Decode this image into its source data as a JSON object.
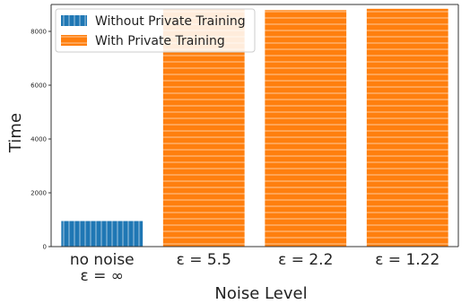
{
  "chart_data": {
    "type": "bar",
    "title": "",
    "xlabel": "Noise Level",
    "ylabel": "Time",
    "ylim": [
      0,
      9000
    ],
    "yticks": [
      0,
      2000,
      4000,
      6000,
      8000
    ],
    "grid": false,
    "legend_position": "top-left",
    "categories": [
      [
        "no noise",
        "ε = ∞"
      ],
      [
        "ε = 5.5"
      ],
      [
        "ε = 2.2"
      ],
      [
        "ε = 1.22"
      ]
    ],
    "series": [
      {
        "name": "Without Private Training",
        "color": "#1f77b4",
        "hatch": "vertical-lines",
        "values": [
          950,
          null,
          null,
          null
        ]
      },
      {
        "name": "With Private Training",
        "color": "#ff7f0e",
        "hatch": "horizontal-lines",
        "values": [
          null,
          8830,
          8790,
          8840
        ]
      }
    ]
  }
}
